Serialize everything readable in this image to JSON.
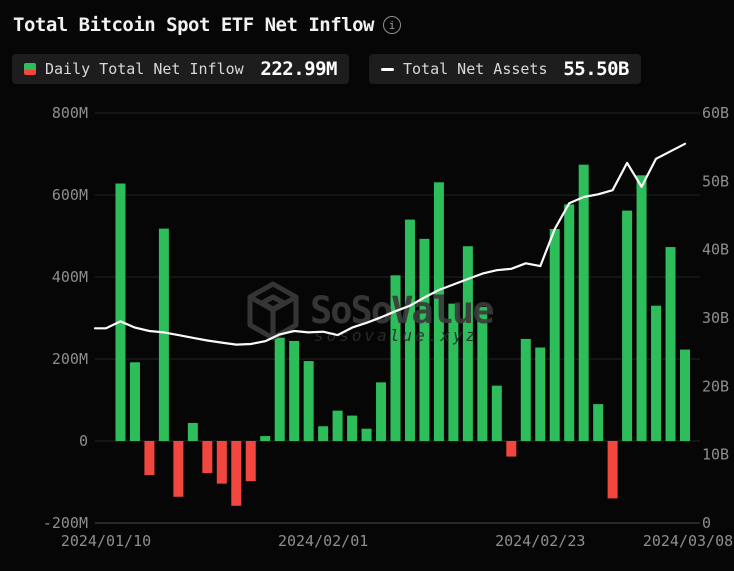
{
  "header": {
    "title": "Total Bitcoin Spot ETF Net Inflow",
    "info_icon_glyph": "i"
  },
  "legend": {
    "daily": {
      "label": "Daily Total Net Inflow",
      "value": "222.99M"
    },
    "assets": {
      "label": "Total Net Assets",
      "value": "55.50B"
    }
  },
  "watermark": {
    "brand": "SoSoValue",
    "domain": "sosovalue.xyz"
  },
  "colors": {
    "background": "#060606",
    "positive_bar": "#2ebd5b",
    "negative_bar": "#f1473e",
    "line": "#fafafa",
    "grid": "#242424",
    "axis_baseline": "#4a4a4a",
    "tick_text": "#8e8e8e",
    "watermark": "#3a3a3a",
    "watermark_sub": "#2c2c2c"
  },
  "chart_data": {
    "type": "bar+line combo",
    "title": "Total Bitcoin Spot ETF Net Inflow",
    "legend_position": "top",
    "grid": true,
    "x_dates": [
      "2024/01/10",
      "2024/01/11",
      "2024/01/12",
      "2024/01/16",
      "2024/01/17",
      "2024/01/18",
      "2024/01/19",
      "2024/01/22",
      "2024/01/23",
      "2024/01/24",
      "2024/01/25",
      "2024/01/26",
      "2024/01/29",
      "2024/01/30",
      "2024/01/31",
      "2024/02/01",
      "2024/02/02",
      "2024/02/05",
      "2024/02/06",
      "2024/02/07",
      "2024/02/08",
      "2024/02/09",
      "2024/02/12",
      "2024/02/13",
      "2024/02/14",
      "2024/02/15",
      "2024/02/16",
      "2024/02/20",
      "2024/02/21",
      "2024/02/22",
      "2024/02/23",
      "2024/02/26",
      "2024/02/27",
      "2024/02/28",
      "2024/02/29",
      "2024/03/01",
      "2024/03/04",
      "2024/03/05",
      "2024/03/06",
      "2024/03/07",
      "2024/03/08"
    ],
    "x_tick_labels": [
      "2024/01/10",
      "2024/02/01",
      "2024/02/23",
      "2024/03/08"
    ],
    "x_tick_indices": [
      0,
      15,
      30,
      40
    ],
    "series": [
      {
        "name": "Daily Total Net Inflow",
        "type": "bar",
        "axis": "left",
        "unit": "M USD",
        "values": [
          null,
          628,
          192,
          -83,
          518,
          -136,
          44,
          -78,
          -104,
          -158,
          -98,
          12,
          252,
          244,
          195,
          36,
          74,
          62,
          30,
          143,
          404,
          540,
          493,
          631,
          335,
          475,
          327,
          135,
          -38,
          249,
          228,
          517,
          577,
          674,
          90,
          -140,
          562,
          648,
          330,
          473,
          222.99
        ]
      },
      {
        "name": "Total Net Assets",
        "type": "line",
        "axis": "right",
        "unit": "B USD",
        "values": [
          28.5,
          29.5,
          28.6,
          28.1,
          27.9,
          27.5,
          27.1,
          26.7,
          26.4,
          26.1,
          26.2,
          26.6,
          27.6,
          28.1,
          27.9,
          28.0,
          27.5,
          28.6,
          29.3,
          30.1,
          31.0,
          31.8,
          33.0,
          34.1,
          34.9,
          35.7,
          36.5,
          37.0,
          37.2,
          38.0,
          37.6,
          43.0,
          46.8,
          47.7,
          48.1,
          48.7,
          52.7,
          49.2,
          53.3,
          54.4,
          55.5
        ]
      }
    ],
    "left_axis": {
      "ticks": [
        "800M",
        "600M",
        "400M",
        "200M",
        "0",
        "-200M"
      ],
      "max": 800,
      "min": -200
    },
    "right_axis": {
      "ticks": [
        "60B",
        "50B",
        "40B",
        "30B",
        "20B",
        "10B",
        "0"
      ],
      "max": 60,
      "min": 0
    }
  }
}
